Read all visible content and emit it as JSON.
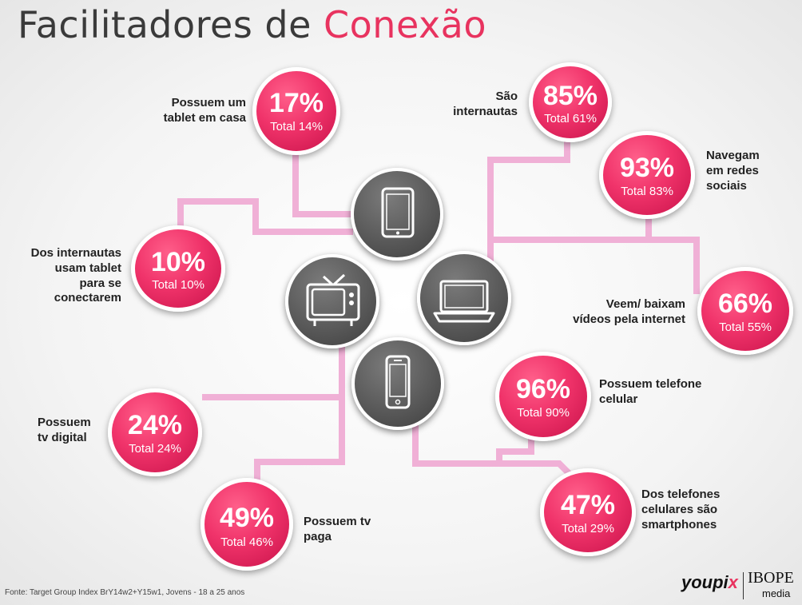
{
  "header": {
    "title_main": "Facilitadores de ",
    "title_accent": "Conexão"
  },
  "colors": {
    "accent": "#e8335f",
    "connector": "#f0b0d6",
    "device": "#5a5a5a"
  },
  "stats": [
    {
      "id": "tablet-em-casa",
      "pct": "17%",
      "total": "Total 14%",
      "label": [
        "Possuem um",
        "tablet em casa"
      ]
    },
    {
      "id": "tablet-conectar",
      "pct": "10%",
      "total": "Total 10%",
      "label": [
        "Dos internautas",
        "usam tablet",
        "para se",
        "conectarem"
      ]
    },
    {
      "id": "tv-digital",
      "pct": "24%",
      "total": "Total 24%",
      "label": [
        "Possuem",
        "tv digital"
      ]
    },
    {
      "id": "tv-paga",
      "pct": "49%",
      "total": "Total 46%",
      "label": [
        "Possuem tv",
        "paga"
      ]
    },
    {
      "id": "internautas",
      "pct": "85%",
      "total": "Total 61%",
      "label": [
        "São",
        "internautas"
      ]
    },
    {
      "id": "redes-sociais",
      "pct": "93%",
      "total": "Total 83%",
      "label": [
        "Navegam",
        "em redes",
        "sociais"
      ]
    },
    {
      "id": "videos",
      "pct": "66%",
      "total": "Total 55%",
      "label": [
        "Veem/ baixam",
        "vídeos pela internet"
      ]
    },
    {
      "id": "celular",
      "pct": "96%",
      "total": "Total 90%",
      "label": [
        "Possuem telefone",
        "celular"
      ]
    },
    {
      "id": "smartphones",
      "pct": "47%",
      "total": "Total 29%",
      "label": [
        "Dos telefones",
        "celulares são",
        "smartphones"
      ]
    }
  ],
  "devices": [
    {
      "id": "tablet",
      "icon": "tablet-icon"
    },
    {
      "id": "tv",
      "icon": "tv-icon"
    },
    {
      "id": "laptop",
      "icon": "laptop-icon"
    },
    {
      "id": "smartphone",
      "icon": "smartphone-icon"
    }
  ],
  "footer": {
    "source": "Fonte: Target Group Index BrY14w2+Y15w1, Jovens - 18 a 25 anos"
  },
  "logos": {
    "youpix_a": "youpi",
    "youpix_b": "x",
    "ibope": "IBOPE",
    "media": "media"
  }
}
